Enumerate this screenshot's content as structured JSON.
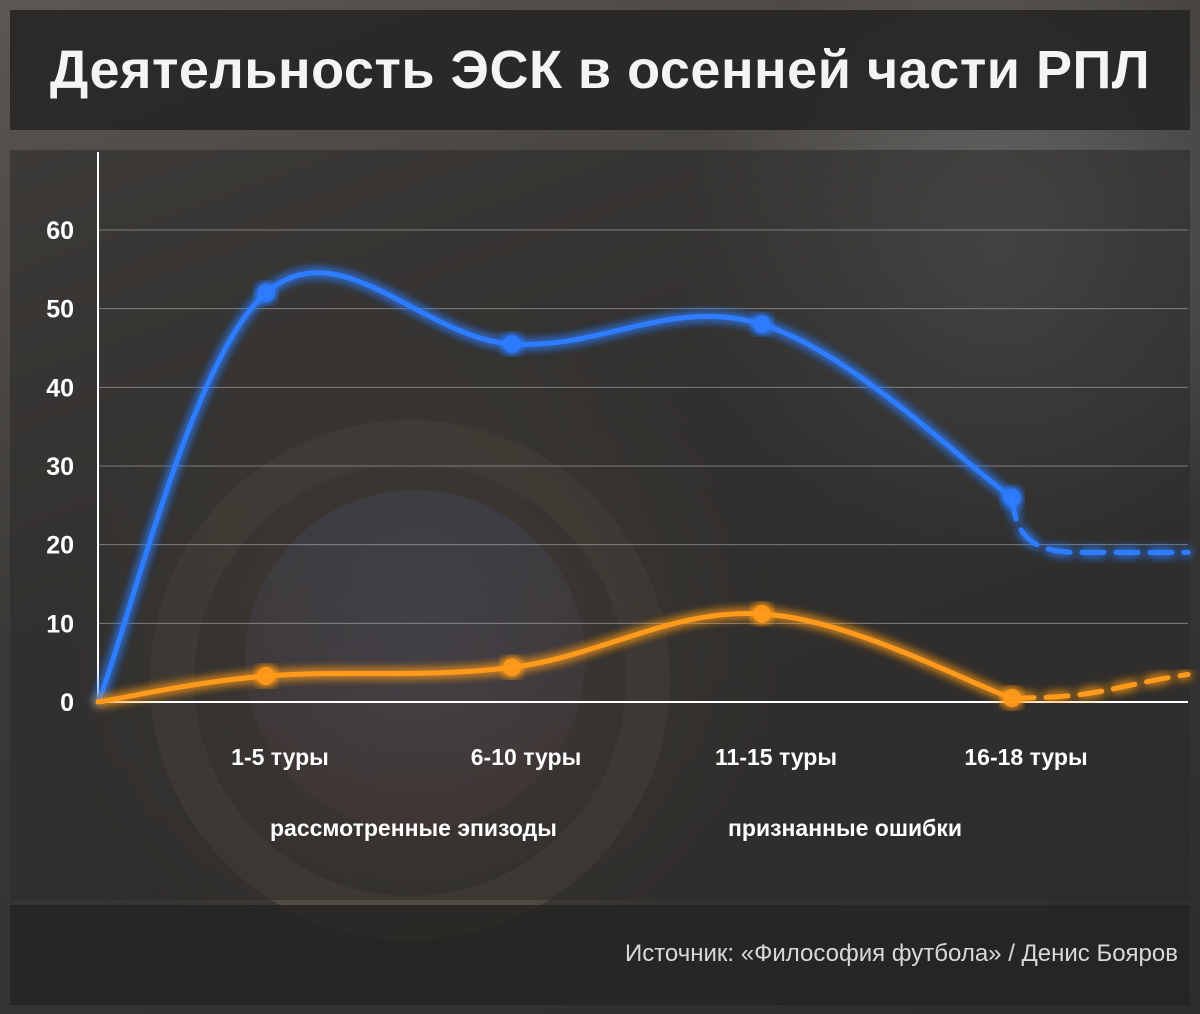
{
  "title": "Деятельность ЭСК в осенней части РПЛ",
  "source": "Источник: «Философия футбола» / Денис Бояров",
  "colors": {
    "episodes": "#2f7bff",
    "errors": "#ff9a1a",
    "gridline": "#bbbbbb",
    "axis": "#ffffff"
  },
  "chart_data": {
    "type": "line",
    "title": "Деятельность ЭСК в осенней части РПЛ",
    "categories": [
      "1-5 туры",
      "6-10 туры",
      "11-15 туры",
      "16-18 туры"
    ],
    "ylim": [
      0,
      60
    ],
    "yticks": [
      0,
      10,
      20,
      30,
      40,
      50,
      60
    ],
    "grid": true,
    "legend_placement": "bottom",
    "series": [
      {
        "name": "рассмотренные эпизоды",
        "values": [
          52,
          45.5,
          48,
          26
        ],
        "color": "#2f7bff"
      },
      {
        "name": "признанные ошибки",
        "values": [
          3.3,
          4.4,
          11.2,
          0.5
        ],
        "color": "#ff9a1a"
      }
    ]
  }
}
